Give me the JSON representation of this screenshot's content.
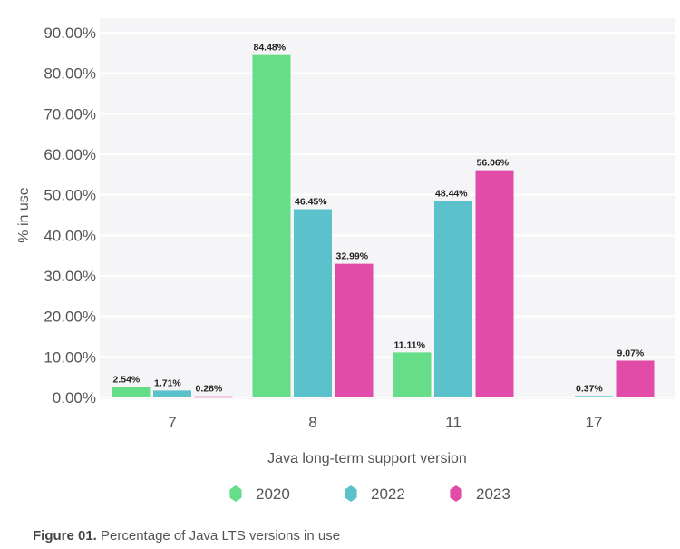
{
  "chart_data": {
    "type": "bar",
    "categories": [
      "7",
      "8",
      "11",
      "17"
    ],
    "series": [
      {
        "name": "2020",
        "color": "#66dd88",
        "values": [
          2.54,
          84.48,
          11.11,
          null
        ],
        "labels": [
          "2.54%",
          "84.48%",
          "11.11%",
          null
        ]
      },
      {
        "name": "2022",
        "color": "#5bc2cc",
        "values": [
          1.71,
          46.45,
          48.44,
          0.37
        ],
        "labels": [
          "1.71%",
          "46.45%",
          "48.44%",
          "0.37%"
        ]
      },
      {
        "name": "2023",
        "color": "#e04ca8",
        "values": [
          0.28,
          32.99,
          56.06,
          9.07
        ],
        "labels": [
          "0.28%",
          "32.99%",
          "56.06%",
          "9.07%"
        ]
      }
    ],
    "xlabel": "Java long-term support version",
    "ylabel": "% in use",
    "ylim": [
      0,
      90
    ],
    "yticks": [
      "0.00%",
      "10.00%",
      "20.00%",
      "30.00%",
      "40.00%",
      "50.00%",
      "60.00%",
      "70.00%",
      "80.00%",
      "90.00%"
    ],
    "grid": true,
    "legend": "bottom"
  },
  "caption": {
    "label": "Figure 01.",
    "text": " Percentage of Java LTS versions in use"
  }
}
